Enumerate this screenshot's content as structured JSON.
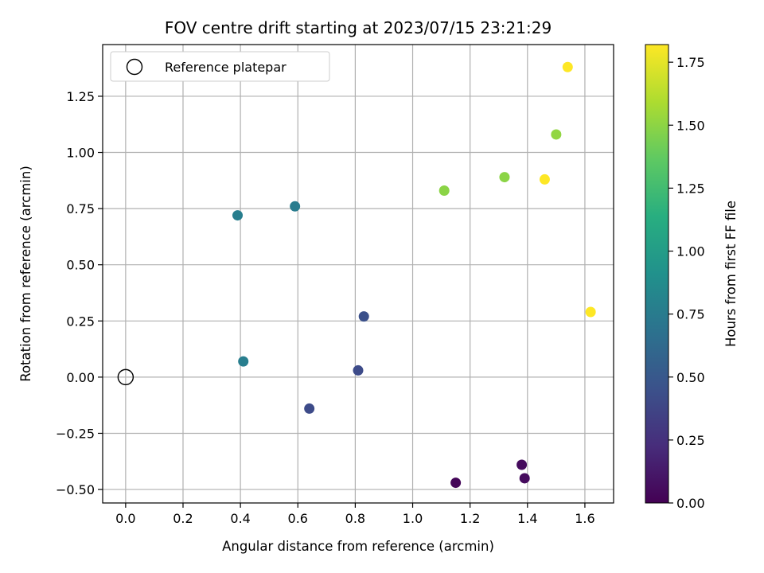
{
  "chart_data": {
    "type": "scatter",
    "title": "FOV centre drift starting at 2023/07/15 23:21:29",
    "xlabel": "Angular distance from reference (arcmin)",
    "ylabel": "Rotation from reference (arcmin)",
    "xlim": [
      -0.08,
      1.7
    ],
    "ylim": [
      -0.56,
      1.48
    ],
    "grid": true,
    "x_ticks": [
      0.0,
      0.2,
      0.4,
      0.6,
      0.8,
      1.0,
      1.2,
      1.4,
      1.6
    ],
    "x_tick_labels": [
      "0.0",
      "0.2",
      "0.4",
      "0.6",
      "0.8",
      "1.0",
      "1.2",
      "1.4",
      "1.6"
    ],
    "y_ticks": [
      -0.5,
      -0.25,
      0.0,
      0.25,
      0.5,
      0.75,
      1.0,
      1.25
    ],
    "y_tick_labels": [
      "−0.50",
      "−0.25",
      "0.00",
      "0.25",
      "0.50",
      "0.75",
      "1.00",
      "1.25"
    ],
    "legend": {
      "placement": "top-left",
      "entries": [
        "Reference platepar"
      ]
    },
    "reference_point": {
      "x": 0.0,
      "y": 0.0,
      "marker": "hollow-circle",
      "color": "#000000"
    },
    "colorbar": {
      "label": "Hours from first FF file",
      "colormap": "viridis",
      "range": [
        0.0,
        1.82
      ],
      "ticks": [
        0.0,
        0.25,
        0.5,
        0.75,
        1.0,
        1.25,
        1.5,
        1.75
      ],
      "tick_labels": [
        "0.00",
        "0.25",
        "0.50",
        "0.75",
        "1.00",
        "1.25",
        "1.50",
        "1.75"
      ]
    },
    "points": [
      {
        "x": 1.15,
        "y": -0.47,
        "hours": 0.02
      },
      {
        "x": 1.38,
        "y": -0.39,
        "hours": 0.05
      },
      {
        "x": 1.39,
        "y": -0.45,
        "hours": 0.05
      },
      {
        "x": 0.64,
        "y": -0.14,
        "hours": 0.42
      },
      {
        "x": 0.81,
        "y": 0.03,
        "hours": 0.42
      },
      {
        "x": 0.83,
        "y": 0.27,
        "hours": 0.45
      },
      {
        "x": 0.41,
        "y": 0.07,
        "hours": 0.78
      },
      {
        "x": 0.39,
        "y": 0.72,
        "hours": 0.78
      },
      {
        "x": 0.59,
        "y": 0.76,
        "hours": 0.76
      },
      {
        "x": 1.11,
        "y": 0.83,
        "hours": 1.5
      },
      {
        "x": 1.32,
        "y": 0.89,
        "hours": 1.5
      },
      {
        "x": 1.5,
        "y": 1.08,
        "hours": 1.52
      },
      {
        "x": 1.46,
        "y": 0.88,
        "hours": 1.82
      },
      {
        "x": 1.54,
        "y": 1.38,
        "hours": 1.82
      },
      {
        "x": 1.62,
        "y": 0.29,
        "hours": 1.82
      }
    ]
  }
}
